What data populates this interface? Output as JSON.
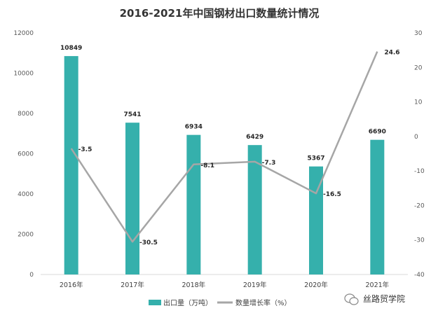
{
  "chart_data": {
    "type": "bar",
    "title": "2016-2021年中国钢材出口数量统计情况",
    "categories": [
      "2016年",
      "2017年",
      "2018年",
      "2019年",
      "2020年",
      "2021年"
    ],
    "series": [
      {
        "name": "出口量（万吨）",
        "type": "bar",
        "axis": "left",
        "color": "#35b0ac",
        "values": [
          10849,
          7541,
          6934,
          6429,
          5367,
          6690
        ]
      },
      {
        "name": "数量增长率（%）",
        "type": "line",
        "axis": "right",
        "color": "#a6a6a6",
        "values": [
          -3.5,
          -30.5,
          -8.1,
          -7.3,
          -16.5,
          24.6
        ]
      }
    ],
    "y_left": {
      "min": 0,
      "max": 12000,
      "ticks": [
        0,
        2000,
        4000,
        6000,
        8000,
        10000,
        12000
      ]
    },
    "y_right": {
      "min": -40,
      "max": 30,
      "ticks": [
        -40,
        -30,
        -20,
        -10,
        0,
        10,
        20,
        30
      ]
    },
    "grid": false,
    "legend": "bottom"
  },
  "watermark": {
    "text": "丝路贸学院",
    "icon": "wechat-icon"
  }
}
